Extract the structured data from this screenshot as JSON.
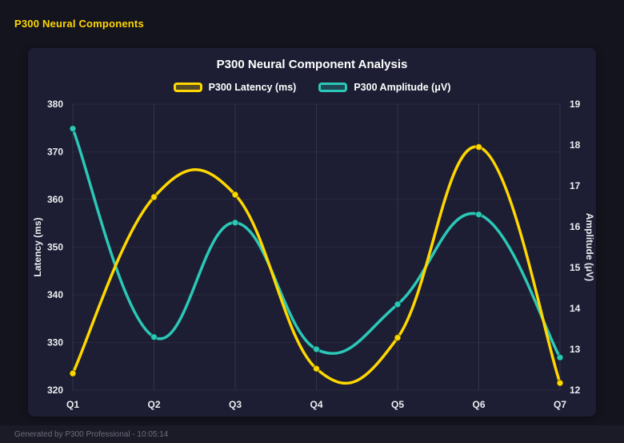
{
  "header": {
    "title": "P300 Neural Components"
  },
  "chart": {
    "title": "P300 Neural Component Analysis",
    "legend": [
      {
        "label": "P300 Latency (ms)",
        "color": "#ffd700"
      },
      {
        "label": "P300 Amplitude (μV)",
        "color": "#2bc8b7"
      }
    ]
  },
  "chart_data": {
    "type": "line",
    "title": "P300 Neural Component Analysis",
    "categories": [
      "Q1",
      "Q2",
      "Q3",
      "Q4",
      "Q5",
      "Q6",
      "Q7"
    ],
    "series": [
      {
        "name": "P300 Latency (ms)",
        "axis": "left",
        "color": "#ffd700",
        "values": [
          323.5,
          360.5,
          361,
          324.5,
          331,
          371,
          321.5
        ]
      },
      {
        "name": "P300 Amplitude (μV)",
        "axis": "right",
        "color": "#2bc8b7",
        "values": [
          18.4,
          13.3,
          16.1,
          13.0,
          14.1,
          16.3,
          12.8
        ]
      }
    ],
    "left_axis": {
      "label": "Latency (ms)",
      "min": 320,
      "max": 380,
      "step": 10
    },
    "right_axis": {
      "label": "Amplitude (μV)",
      "min": 12,
      "max": 19,
      "step": 1
    },
    "grid": true,
    "legend_position": "top",
    "smoothing": "cubic"
  },
  "colors": {
    "page_bg": "#14141f",
    "card_bg": "#1d1e33",
    "accent_yellow": "#ffd700",
    "accent_teal": "#2bc8b7",
    "tick_text": "#eceef2"
  },
  "footer": {
    "text": "Generated by P300 Professional - 10:05:14"
  }
}
